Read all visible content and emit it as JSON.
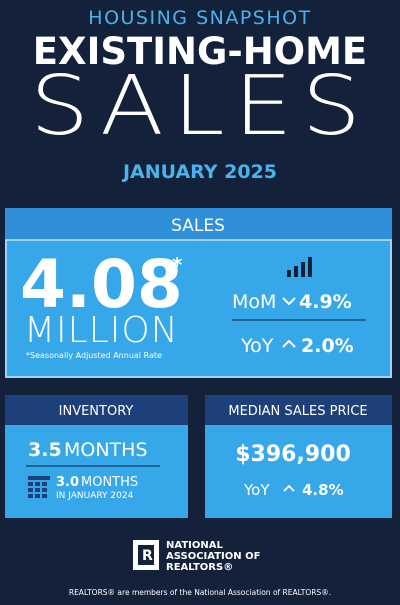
{
  "header": {
    "kicker": "HOUSING SNAPSHOT",
    "title_line1": "EXISTING-HOME",
    "title_line2": "SALES",
    "period": "JANUARY 2025"
  },
  "sales": {
    "label": "SALES",
    "value": "4.08",
    "asterisk": "*",
    "unit": "MILLION",
    "note": "*Seasonally Adjusted Annual Rate",
    "mom_label": "MoM",
    "mom_value": "4.9%",
    "yoy_label": "YoY",
    "yoy_value": "2.0%"
  },
  "inventory": {
    "label": "INVENTORY",
    "value": "3.5",
    "unit": "MONTHS",
    "prior_value": "3.0",
    "prior_unit": "MONTHS",
    "prior_period": "IN JANUARY 2024"
  },
  "median_price": {
    "label": "MEDIAN SALES PRICE",
    "value": "$396,900",
    "yoy_label": "YoY",
    "yoy_value": "4.8%"
  },
  "logo": {
    "lines": [
      "NATIONAL",
      "ASSOCIATION OF",
      "REALTORS®"
    ]
  },
  "footer": "REALTORS® are members of the National Association of REALTORS®."
}
